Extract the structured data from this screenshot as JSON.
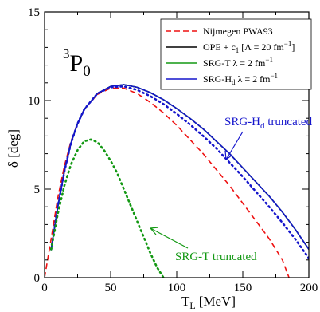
{
  "chart_data": {
    "type": "line",
    "xlabel": "T",
    "xlabel_sub": "L",
    "xlabel_unit": "[MeV]",
    "ylabel": "δ [deg]",
    "xlim": [
      0,
      200
    ],
    "ylim": [
      0,
      15
    ],
    "xticks": [
      0,
      50,
      100,
      150,
      200
    ],
    "yticks": [
      0,
      5,
      10,
      15
    ],
    "grid": false,
    "legend_position": "top-right",
    "partial_wave": {
      "sup": "3",
      "main": "P",
      "sub": "0"
    },
    "colors": {
      "red": "#ee1111",
      "black": "#000000",
      "green": "#129812",
      "blue": "#1515cc"
    },
    "legend": [
      {
        "label": "Nijmegen PWA93",
        "color": "#ee1111",
        "style": "dashed"
      },
      {
        "label_main": "OPE + c",
        "label_sub": "1",
        "label_rest": " [Λ = 20 fm",
        "label_sup": "−1",
        "label_end": "]",
        "color": "#000000",
        "style": "solid"
      },
      {
        "label_main": "SRG-T λ = 2 fm",
        "label_sup": "−1",
        "color": "#129812",
        "style": "solid"
      },
      {
        "label_main": "SRG-H",
        "label_sub": "d",
        "label_rest": " λ = 2 fm",
        "label_sup": "−1",
        "color": "#1515cc",
        "style": "solid"
      }
    ],
    "annotations": [
      {
        "main": "SRG-H",
        "sub": "d",
        "rest": " truncated",
        "color": "#1515cc"
      },
      {
        "main": "SRG-T truncated",
        "color": "#129812"
      }
    ],
    "series": [
      {
        "name": "Nijmegen PWA93",
        "color": "#ee1111",
        "style": "dashed",
        "x": [
          0,
          5,
          10,
          15,
          20,
          25,
          30,
          40,
          50,
          60,
          70,
          80,
          90,
          100,
          110,
          120,
          130,
          140,
          150,
          160,
          170,
          180,
          185
        ],
        "y": [
          0,
          2.2,
          4.5,
          6.3,
          7.7,
          8.7,
          9.5,
          10.35,
          10.7,
          10.7,
          10.4,
          9.9,
          9.3,
          8.6,
          7.8,
          7.0,
          6.1,
          5.2,
          4.2,
          3.2,
          2.2,
          1.0,
          0
        ]
      },
      {
        "name": "OPE + c1 [Λ = 20 fm−1]",
        "color": "#000000",
        "style": "solid",
        "x": [
          5,
          10,
          15,
          20,
          25,
          30,
          40,
          50,
          60,
          70,
          80,
          90,
          100,
          110,
          120,
          130,
          140,
          150,
          160,
          170,
          180,
          190,
          200
        ],
        "y": [
          1.6,
          4.0,
          6.0,
          7.6,
          8.7,
          9.5,
          10.4,
          10.8,
          10.9,
          10.75,
          10.45,
          10.05,
          9.55,
          9.0,
          8.4,
          7.7,
          7.0,
          6.2,
          5.4,
          4.6,
          3.7,
          2.7,
          1.6
        ]
      },
      {
        "name": "SRG-T λ = 2 fm−1",
        "color": "#129812",
        "style": "solid",
        "x": [
          5,
          10,
          15,
          20,
          25,
          30,
          40,
          50,
          60,
          70,
          80,
          90,
          100,
          110,
          120,
          130,
          140,
          150,
          160,
          170,
          180,
          190,
          200
        ],
        "y": [
          1.6,
          4.0,
          6.0,
          7.6,
          8.7,
          9.5,
          10.4,
          10.8,
          10.9,
          10.75,
          10.45,
          10.05,
          9.55,
          9.0,
          8.4,
          7.7,
          7.0,
          6.2,
          5.4,
          4.6,
          3.7,
          2.7,
          1.6
        ]
      },
      {
        "name": "SRG-Hd λ = 2 fm−1",
        "color": "#1515cc",
        "style": "solid",
        "x": [
          5,
          10,
          15,
          20,
          25,
          30,
          40,
          50,
          60,
          70,
          80,
          90,
          100,
          110,
          120,
          130,
          140,
          150,
          160,
          170,
          180,
          190,
          200
        ],
        "y": [
          1.6,
          4.0,
          6.0,
          7.6,
          8.7,
          9.5,
          10.4,
          10.8,
          10.9,
          10.75,
          10.45,
          10.05,
          9.55,
          9.0,
          8.4,
          7.7,
          7.0,
          6.2,
          5.4,
          4.6,
          3.7,
          2.7,
          1.6
        ]
      },
      {
        "name": "SRG-Hd truncated",
        "color": "#1515cc",
        "style": "dotted",
        "x": [
          5,
          10,
          15,
          20,
          25,
          30,
          40,
          50,
          60,
          70,
          80,
          90,
          100,
          110,
          120,
          130,
          140,
          150,
          160,
          170,
          180,
          190,
          200
        ],
        "y": [
          1.6,
          4.0,
          6.0,
          7.6,
          8.7,
          9.5,
          10.4,
          10.75,
          10.8,
          10.6,
          10.25,
          9.8,
          9.25,
          8.65,
          8.0,
          7.3,
          6.5,
          5.7,
          4.85,
          4.0,
          3.1,
          2.15,
          1.1
        ]
      },
      {
        "name": "SRG-T truncated",
        "color": "#129812",
        "style": "dotted",
        "x": [
          5,
          10,
          15,
          20,
          25,
          30,
          35,
          40,
          45,
          50,
          55,
          60,
          65,
          70,
          75,
          80,
          85,
          90
        ],
        "y": [
          1.6,
          3.6,
          5.2,
          6.4,
          7.2,
          7.7,
          7.8,
          7.65,
          7.2,
          6.6,
          5.9,
          5.0,
          4.1,
          3.2,
          2.3,
          1.4,
          0.6,
          0
        ]
      }
    ]
  }
}
